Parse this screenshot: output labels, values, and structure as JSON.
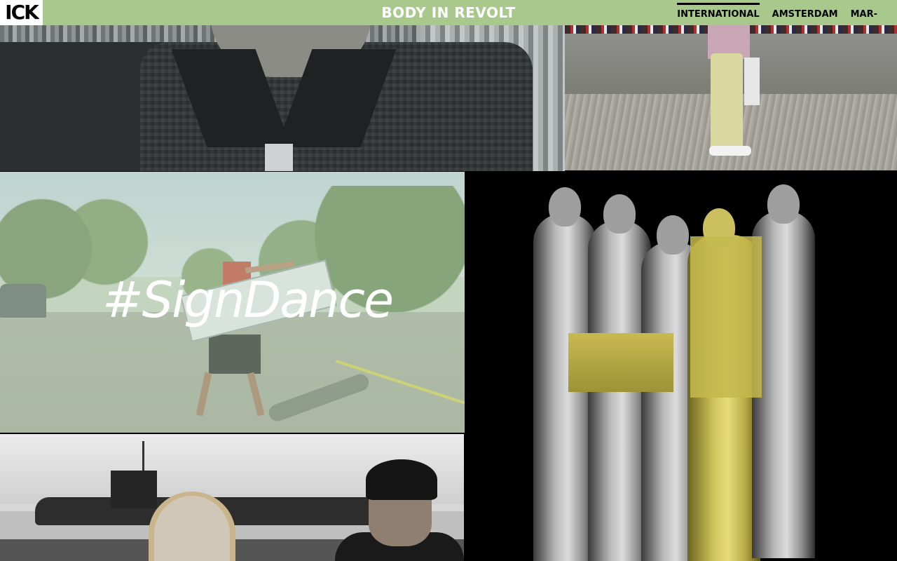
{
  "header": {
    "logo_text": "ICK",
    "title": "BODY IN REVOLT",
    "nav": [
      {
        "label": "INTERNATIONAL",
        "active": true
      },
      {
        "label": "AMSTERDAM",
        "active": false
      },
      {
        "label": "MAR-",
        "active": false
      }
    ],
    "bar_color": "#a9c98c",
    "logo_bg": "#ffffff"
  },
  "tiles": {
    "sign_dance": {
      "title": "#SignDance"
    }
  },
  "icons": {
    "logo": "ick-logo"
  }
}
